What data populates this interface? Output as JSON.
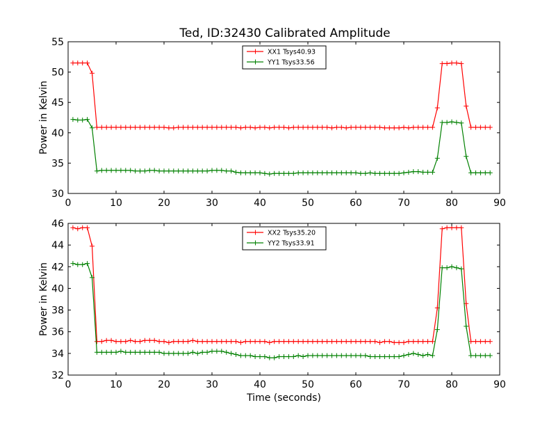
{
  "figure": {
    "title": "Ted, ID:32430 Calibrated Amplitude"
  },
  "chart_data": [
    {
      "type": "line",
      "title": "Ted, ID:32430 Calibrated Amplitude",
      "xlabel": "",
      "ylabel": "Power in Kelvin",
      "xlim": [
        0,
        90
      ],
      "ylim": [
        30,
        55
      ],
      "xticks": [
        0,
        10,
        20,
        30,
        40,
        50,
        60,
        70,
        80,
        90
      ],
      "yticks": [
        30,
        35,
        40,
        45,
        50,
        55
      ],
      "grid": false,
      "legend_position": "top-center",
      "series": [
        {
          "name": "XX1 Tsys40.93",
          "color": "#ff0000",
          "marker": "+",
          "x": [
            1,
            2,
            3,
            4,
            5,
            6,
            7,
            8,
            9,
            10,
            11,
            12,
            13,
            14,
            15,
            16,
            17,
            18,
            19,
            20,
            21,
            22,
            23,
            24,
            25,
            26,
            27,
            28,
            29,
            30,
            31,
            32,
            33,
            34,
            35,
            36,
            37,
            38,
            39,
            40,
            41,
            42,
            43,
            44,
            45,
            46,
            47,
            48,
            49,
            50,
            51,
            52,
            53,
            54,
            55,
            56,
            57,
            58,
            59,
            60,
            61,
            62,
            63,
            64,
            65,
            66,
            67,
            68,
            69,
            70,
            71,
            72,
            73,
            74,
            75,
            76,
            77,
            78,
            79,
            80,
            81,
            82,
            83,
            84,
            85,
            86,
            87,
            88
          ],
          "y": [
            51.5,
            51.5,
            51.5,
            51.5,
            49.8,
            40.9,
            40.9,
            40.9,
            40.9,
            40.9,
            40.9,
            40.9,
            40.9,
            40.9,
            40.9,
            40.9,
            40.9,
            40.9,
            40.9,
            40.9,
            40.8,
            40.8,
            40.9,
            40.9,
            40.9,
            40.9,
            40.9,
            40.9,
            40.9,
            40.9,
            40.9,
            40.9,
            40.9,
            40.9,
            40.9,
            40.8,
            40.9,
            40.9,
            40.8,
            40.9,
            40.9,
            40.8,
            40.9,
            40.9,
            40.9,
            40.8,
            40.9,
            40.9,
            40.9,
            40.9,
            40.9,
            40.9,
            40.9,
            40.9,
            40.8,
            40.9,
            40.9,
            40.8,
            40.9,
            40.9,
            40.9,
            40.9,
            40.9,
            40.9,
            40.9,
            40.8,
            40.8,
            40.8,
            40.8,
            40.9,
            40.8,
            40.9,
            40.9,
            40.9,
            40.9,
            40.9,
            44.1,
            51.4,
            51.4,
            51.5,
            51.5,
            51.4,
            44.4,
            40.9,
            40.9,
            40.9,
            40.9,
            40.9
          ]
        },
        {
          "name": "YY1 Tsys33.56",
          "color": "#008000",
          "marker": "+",
          "x": [
            1,
            2,
            3,
            4,
            5,
            6,
            7,
            8,
            9,
            10,
            11,
            12,
            13,
            14,
            15,
            16,
            17,
            18,
            19,
            20,
            21,
            22,
            23,
            24,
            25,
            26,
            27,
            28,
            29,
            30,
            31,
            32,
            33,
            34,
            35,
            36,
            37,
            38,
            39,
            40,
            41,
            42,
            43,
            44,
            45,
            46,
            47,
            48,
            49,
            50,
            51,
            52,
            53,
            54,
            55,
            56,
            57,
            58,
            59,
            60,
            61,
            62,
            63,
            64,
            65,
            66,
            67,
            68,
            69,
            70,
            71,
            72,
            73,
            74,
            75,
            76,
            77,
            78,
            79,
            80,
            81,
            82,
            83,
            84,
            85,
            86,
            87,
            88
          ],
          "y": [
            42.2,
            42.1,
            42.1,
            42.2,
            40.8,
            33.7,
            33.8,
            33.8,
            33.8,
            33.8,
            33.8,
            33.8,
            33.8,
            33.7,
            33.7,
            33.7,
            33.8,
            33.8,
            33.7,
            33.7,
            33.7,
            33.7,
            33.7,
            33.7,
            33.7,
            33.7,
            33.7,
            33.7,
            33.7,
            33.8,
            33.8,
            33.8,
            33.7,
            33.7,
            33.5,
            33.4,
            33.4,
            33.4,
            33.4,
            33.4,
            33.3,
            33.2,
            33.3,
            33.3,
            33.3,
            33.3,
            33.3,
            33.4,
            33.4,
            33.4,
            33.4,
            33.4,
            33.4,
            33.4,
            33.4,
            33.4,
            33.4,
            33.4,
            33.4,
            33.4,
            33.3,
            33.3,
            33.4,
            33.3,
            33.3,
            33.3,
            33.3,
            33.3,
            33.3,
            33.4,
            33.5,
            33.6,
            33.6,
            33.5,
            33.5,
            33.5,
            35.8,
            41.7,
            41.7,
            41.8,
            41.7,
            41.6,
            36.1,
            33.4,
            33.4,
            33.4,
            33.4,
            33.4
          ]
        }
      ]
    },
    {
      "type": "line",
      "title": "",
      "xlabel": "Time (seconds)",
      "ylabel": "Power in Kelvin",
      "xlim": [
        0,
        90
      ],
      "ylim": [
        32,
        46
      ],
      "xticks": [
        0,
        10,
        20,
        30,
        40,
        50,
        60,
        70,
        80,
        90
      ],
      "yticks": [
        32,
        34,
        36,
        38,
        40,
        42,
        44,
        46
      ],
      "grid": false,
      "legend_position": "top-center",
      "series": [
        {
          "name": "XX2 Tsys35.20",
          "color": "#ff0000",
          "marker": "+",
          "x": [
            1,
            2,
            3,
            4,
            5,
            6,
            7,
            8,
            9,
            10,
            11,
            12,
            13,
            14,
            15,
            16,
            17,
            18,
            19,
            20,
            21,
            22,
            23,
            24,
            25,
            26,
            27,
            28,
            29,
            30,
            31,
            32,
            33,
            34,
            35,
            36,
            37,
            38,
            39,
            40,
            41,
            42,
            43,
            44,
            45,
            46,
            47,
            48,
            49,
            50,
            51,
            52,
            53,
            54,
            55,
            56,
            57,
            58,
            59,
            60,
            61,
            62,
            63,
            64,
            65,
            66,
            67,
            68,
            69,
            70,
            71,
            72,
            73,
            74,
            75,
            76,
            77,
            78,
            79,
            80,
            81,
            82,
            83,
            84,
            85,
            86,
            87,
            88
          ],
          "y": [
            45.6,
            45.5,
            45.6,
            45.6,
            43.9,
            35.1,
            35.1,
            35.2,
            35.2,
            35.1,
            35.1,
            35.1,
            35.2,
            35.1,
            35.1,
            35.2,
            35.2,
            35.2,
            35.1,
            35.1,
            35.0,
            35.1,
            35.1,
            35.1,
            35.1,
            35.2,
            35.1,
            35.1,
            35.1,
            35.1,
            35.1,
            35.1,
            35.1,
            35.1,
            35.1,
            35.0,
            35.1,
            35.1,
            35.1,
            35.1,
            35.1,
            35.0,
            35.1,
            35.1,
            35.1,
            35.1,
            35.1,
            35.1,
            35.1,
            35.1,
            35.1,
            35.1,
            35.1,
            35.1,
            35.1,
            35.1,
            35.1,
            35.1,
            35.1,
            35.1,
            35.1,
            35.1,
            35.1,
            35.1,
            35.0,
            35.1,
            35.1,
            35.0,
            35.0,
            35.0,
            35.1,
            35.1,
            35.1,
            35.1,
            35.1,
            35.1,
            38.2,
            45.5,
            45.6,
            45.6,
            45.6,
            45.6,
            38.6,
            35.1,
            35.1,
            35.1,
            35.1,
            35.1
          ]
        },
        {
          "name": "YY2 Tsys33.91",
          "color": "#008000",
          "marker": "+",
          "x": [
            1,
            2,
            3,
            4,
            5,
            6,
            7,
            8,
            9,
            10,
            11,
            12,
            13,
            14,
            15,
            16,
            17,
            18,
            19,
            20,
            21,
            22,
            23,
            24,
            25,
            26,
            27,
            28,
            29,
            30,
            31,
            32,
            33,
            34,
            35,
            36,
            37,
            38,
            39,
            40,
            41,
            42,
            43,
            44,
            45,
            46,
            47,
            48,
            49,
            50,
            51,
            52,
            53,
            54,
            55,
            56,
            57,
            58,
            59,
            60,
            61,
            62,
            63,
            64,
            65,
            66,
            67,
            68,
            69,
            70,
            71,
            72,
            73,
            74,
            75,
            76,
            77,
            78,
            79,
            80,
            81,
            82,
            83,
            84,
            85,
            86,
            87,
            88
          ],
          "y": [
            42.3,
            42.2,
            42.2,
            42.3,
            41.0,
            34.1,
            34.1,
            34.1,
            34.1,
            34.1,
            34.2,
            34.1,
            34.1,
            34.1,
            34.1,
            34.1,
            34.1,
            34.1,
            34.1,
            34.0,
            34.0,
            34.0,
            34.0,
            34.0,
            34.0,
            34.1,
            34.0,
            34.1,
            34.1,
            34.2,
            34.2,
            34.2,
            34.1,
            34.0,
            33.9,
            33.8,
            33.8,
            33.8,
            33.7,
            33.7,
            33.7,
            33.6,
            33.6,
            33.7,
            33.7,
            33.7,
            33.7,
            33.8,
            33.7,
            33.8,
            33.8,
            33.8,
            33.8,
            33.8,
            33.8,
            33.8,
            33.8,
            33.8,
            33.8,
            33.8,
            33.8,
            33.8,
            33.7,
            33.7,
            33.7,
            33.7,
            33.7,
            33.7,
            33.7,
            33.8,
            33.9,
            34.0,
            33.9,
            33.8,
            33.9,
            33.8,
            36.2,
            41.9,
            41.9,
            42.0,
            41.9,
            41.8,
            36.5,
            33.8,
            33.8,
            33.8,
            33.8,
            33.8
          ]
        }
      ]
    }
  ]
}
